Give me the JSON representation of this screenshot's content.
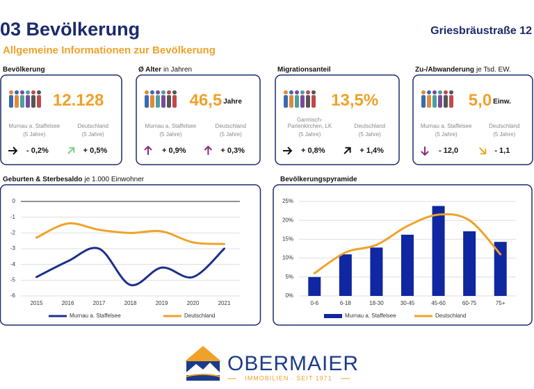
{
  "header": {
    "section_title": "03 Bevölkerung",
    "address": "Griesbräustraße 12",
    "subtitle": "Allgemeine Informationen zur Bevölkerung"
  },
  "cards": [
    {
      "title": "Bevölkerung",
      "value": "12.128",
      "left_label": "Murnau a. Staffelsee",
      "left_period": "(5 Jahre)",
      "right_label": "Deutschland",
      "right_period": "(5 Jahre)",
      "left_change": "- 0,2%",
      "right_change": "+ 0,5%"
    },
    {
      "title": "Ø Alter",
      "title_note": "in Jahren",
      "value": "46,5",
      "unit": "Jahre",
      "left_label": "Murnau a. Staffelsee",
      "left_period": "(5 Jahre)",
      "right_label": "Deutschland",
      "right_period": "(5 Jahre)",
      "left_change": "+ 0,9%",
      "right_change": "+ 0,3%"
    },
    {
      "title": "Migrationsanteil",
      "value": "13,5%",
      "left_label": [
        "Garmisch-",
        "Partenkirchen, LK"
      ],
      "left_period": "(5 Jahre)",
      "right_label": "Deutschland",
      "right_period": "(5 Jahre)",
      "left_change": "+ 0,8%",
      "right_change": "+ 1,4%"
    },
    {
      "title": "Zu-/Abwanderung",
      "title_note": "je Tsd. EW.",
      "value": "5,0",
      "unit": "Einw.",
      "left_label": "Murnau a. Staffelsee",
      "left_period": "(5 Jahre)",
      "right_label": "Deutschland",
      "right_period": "(5 Jahre)",
      "left_change": "- 12,0",
      "right_change": "- 1,1"
    }
  ],
  "chart_data": [
    {
      "type": "line",
      "title": "Geburten & Sterbesaldo",
      "subtitle": "je 1.000 Einwohner",
      "categories": [
        "2015",
        "2016",
        "2017",
        "2018",
        "2019",
        "2020",
        "2021"
      ],
      "series": [
        {
          "name": "Murnau a. Staffelsee",
          "color": "#1b2f8a",
          "values": [
            -4.8,
            -3.8,
            -3.0,
            -5.3,
            -4.2,
            -4.8,
            -3.0
          ]
        },
        {
          "name": "Deutschland",
          "color": "#efa22a",
          "values": [
            -2.3,
            -1.4,
            -1.8,
            -2.0,
            -1.9,
            -2.6,
            -2.7
          ]
        }
      ],
      "ylim": [
        -6,
        0
      ],
      "yticks": [
        0,
        -1,
        -2,
        -3,
        -4,
        -5,
        -6
      ],
      "grid": true
    },
    {
      "type": "bar",
      "title": "Bevölkerungspyramide",
      "categories": [
        "0-6",
        "6-18",
        "18-30",
        "30-45",
        "45-60",
        "60-75",
        "75+"
      ],
      "series": [
        {
          "name": "Murnau a. Staffelsee",
          "color": "#0f27a0",
          "type": "bar",
          "values": [
            5.0,
            11.0,
            12.8,
            16.2,
            23.8,
            17.1,
            14.3
          ]
        },
        {
          "name": "Deutschland",
          "color": "#efa22a",
          "type": "line",
          "values": [
            6.0,
            11.5,
            13.5,
            18.5,
            21.5,
            20.0,
            11.0
          ]
        }
      ],
      "ylim": [
        0,
        25
      ],
      "yticks": [
        {
          "value": 0,
          "label": "0%"
        },
        {
          "value": 5,
          "label": "5%"
        },
        {
          "value": 10,
          "label": "10%"
        },
        {
          "value": 15,
          "label": "15%"
        },
        {
          "value": 20,
          "label": "20%"
        },
        {
          "value": 25,
          "label": "25%"
        }
      ],
      "grid": true
    }
  ],
  "footer": {
    "brand": "OBERMAIER",
    "tagline": "IMMOBILIEN · SEIT 1971"
  }
}
